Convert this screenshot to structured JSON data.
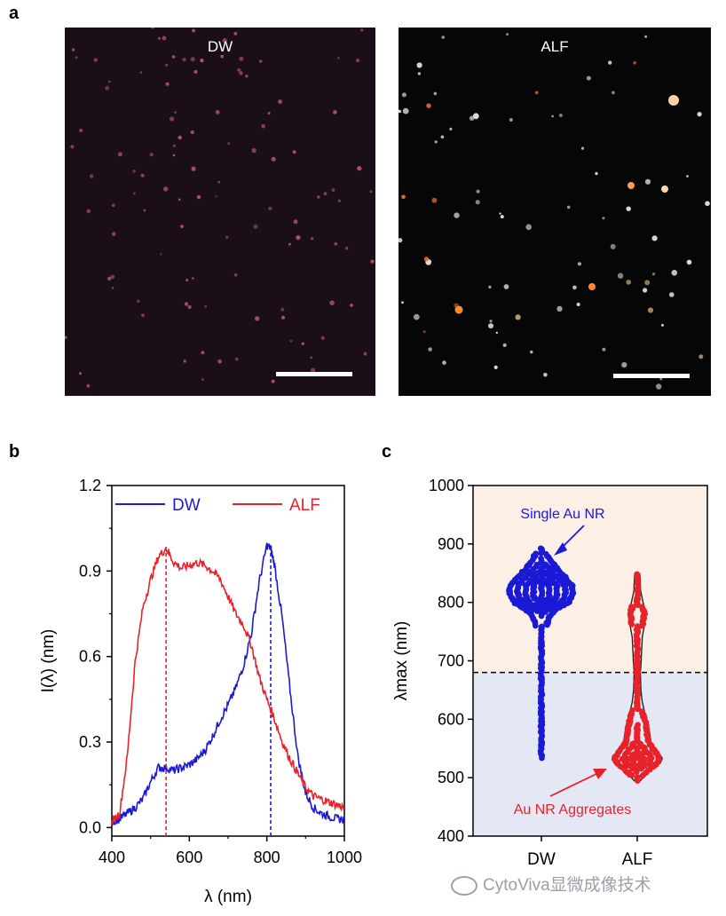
{
  "panels": {
    "a": "a",
    "b": "b",
    "c": "c"
  },
  "micrographs": [
    {
      "label": "DW",
      "background": "#1a0f18",
      "particle_color": "#b2506e"
    },
    {
      "label": "ALF",
      "background": "#060606",
      "particle_color": "#d8e0d6"
    }
  ],
  "watermark": "CytoViva显微成像技术",
  "colors": {
    "dw": "#1a1ad6",
    "alf": "#e8222a",
    "upper_band": "#fbefe6",
    "lower_band": "#e4e8f5"
  },
  "chart_data": [
    {
      "type": "line",
      "xlabel": "λ (nm)",
      "ylabel": "I(λ) (nm)",
      "xlim": [
        400,
        1000
      ],
      "ylim": [
        -0.03,
        1.2
      ],
      "xticks": [
        "400",
        "600",
        "800",
        "1000"
      ],
      "yticks": [
        "0.0",
        "0.3",
        "0.6",
        "0.9",
        "1.2"
      ],
      "legend_position": "top",
      "series": [
        {
          "name": "DW",
          "color": "#1a1ad6",
          "x": [
            400,
            420,
            440,
            460,
            480,
            500,
            520,
            540,
            560,
            580,
            600,
            620,
            640,
            660,
            680,
            700,
            720,
            740,
            760,
            780,
            800,
            810,
            820,
            840,
            860,
            880,
            900,
            920,
            940,
            960,
            980,
            1000
          ],
          "y": [
            0.02,
            0.03,
            0.05,
            0.07,
            0.1,
            0.16,
            0.21,
            0.21,
            0.2,
            0.21,
            0.22,
            0.24,
            0.27,
            0.32,
            0.38,
            0.43,
            0.49,
            0.57,
            0.68,
            0.86,
            0.99,
            0.98,
            0.92,
            0.73,
            0.48,
            0.25,
            0.12,
            0.07,
            0.05,
            0.04,
            0.03,
            0.03
          ],
          "marker_x": 810
        },
        {
          "name": "ALF",
          "color": "#e8222a",
          "x": [
            400,
            420,
            440,
            460,
            480,
            500,
            520,
            540,
            560,
            580,
            600,
            620,
            640,
            660,
            680,
            700,
            720,
            740,
            760,
            780,
            800,
            820,
            840,
            860,
            880,
            900,
            920,
            940,
            960,
            980,
            1000
          ],
          "y": [
            0.02,
            0.05,
            0.25,
            0.58,
            0.77,
            0.87,
            0.95,
            0.98,
            0.93,
            0.91,
            0.92,
            0.93,
            0.92,
            0.9,
            0.87,
            0.81,
            0.75,
            0.71,
            0.64,
            0.53,
            0.45,
            0.38,
            0.3,
            0.24,
            0.19,
            0.14,
            0.11,
            0.1,
            0.09,
            0.08,
            0.07
          ],
          "marker_x": 540
        }
      ]
    },
    {
      "type": "scatter",
      "ylabel": "λmax (nm)",
      "ylim": [
        400,
        1000
      ],
      "yticks": [
        "400",
        "500",
        "600",
        "700",
        "800",
        "900",
        "1000"
      ],
      "categories": [
        "DW",
        "ALF"
      ],
      "threshold": 680,
      "annotations": [
        "Single Au NR",
        "Au NR Aggregates"
      ],
      "series": [
        {
          "name": "DW",
          "color": "#1a1ad6",
          "profile": [
            [
              535,
              0.04
            ],
            [
              560,
              0.05
            ],
            [
              600,
              0.06
            ],
            [
              640,
              0.06
            ],
            [
              680,
              0.06
            ],
            [
              720,
              0.08
            ],
            [
              760,
              0.15
            ],
            [
              780,
              0.3
            ],
            [
              790,
              0.55
            ],
            [
              800,
              0.85
            ],
            [
              810,
              0.95
            ],
            [
              818,
              1.0
            ],
            [
              830,
              0.95
            ],
            [
              845,
              0.7
            ],
            [
              860,
              0.45
            ],
            [
              875,
              0.25
            ],
            [
              890,
              0.1
            ],
            [
              895,
              0.04
            ]
          ]
        },
        {
          "name": "ALF",
          "color": "#e8222a",
          "profile": [
            [
              495,
              0.05
            ],
            [
              505,
              0.25
            ],
            [
              515,
              0.5
            ],
            [
              525,
              0.8
            ],
            [
              533,
              0.88
            ],
            [
              545,
              0.7
            ],
            [
              560,
              0.45
            ],
            [
              575,
              0.4
            ],
            [
              590,
              0.35
            ],
            [
              610,
              0.22
            ],
            [
              630,
              0.12
            ],
            [
              650,
              0.07
            ],
            [
              680,
              0.05
            ],
            [
              700,
              0.08
            ],
            [
              720,
              0.1
            ],
            [
              740,
              0.12
            ],
            [
              760,
              0.2
            ],
            [
              780,
              0.28
            ],
            [
              800,
              0.15
            ],
            [
              820,
              0.06
            ],
            [
              850,
              0.03
            ]
          ]
        }
      ]
    }
  ]
}
